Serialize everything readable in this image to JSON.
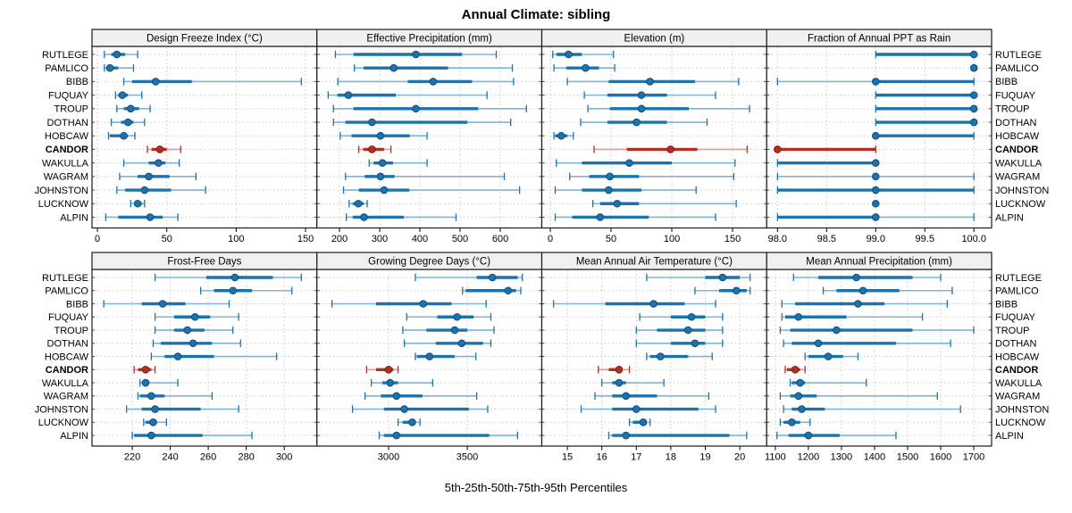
{
  "title": "Annual Climate: sibling",
  "axis_title": "5th-25th-50th-75th-95th Percentiles",
  "colors": {
    "series_blue": "#1c73ae",
    "series_blue_light": "#7db4d8",
    "series_blue_edge": "#0f4d79",
    "series_red": "#b52f25",
    "series_red_light": "#dc9d96",
    "series_red_edge": "#7c1c15",
    "grid": "#c9c9c9",
    "strip_bg": "#f0f0f0",
    "panel_border": "#1a1a1a",
    "text": "#000000"
  },
  "chart_data": {
    "type": "interval-dotplot",
    "subtype": "trellis 2x4, horizontal percentile whiskers with median dot",
    "percentiles": [
      5,
      25,
      50,
      75,
      95
    ],
    "legend_position": "none",
    "grid": "dotted",
    "highlight_site": "CANDOR",
    "sites": [
      "RUTLEGE",
      "PAMLICO",
      "BIBB",
      "FUQUAY",
      "TROUP",
      "DOTHAN",
      "HOBCAW",
      "CANDOR",
      "WAKULLA",
      "WAGRAM",
      "JOHNSTON",
      "LUCKNOW",
      "ALPIN"
    ],
    "panels": [
      {
        "title": "Design Freeze Index (°C)",
        "grid_pos": [
          0,
          0
        ],
        "xlim": [
          -3.9,
          158.2
        ],
        "ticks": [
          0,
          50,
          100,
          150
        ],
        "tick_labels": [
          "0",
          "50",
          "100",
          "150"
        ],
        "values": [
          [
            5,
            10,
            14,
            20,
            29
          ],
          [
            5,
            7,
            9,
            15,
            26
          ],
          [
            19,
            25,
            42,
            68,
            147
          ],
          [
            13,
            15,
            18,
            22,
            32
          ],
          [
            14,
            19,
            24,
            30,
            38
          ],
          [
            10,
            17,
            22,
            26,
            34
          ],
          [
            8,
            9,
            19,
            22,
            27
          ],
          [
            36,
            39,
            45,
            50,
            60
          ],
          [
            19,
            37,
            44,
            49,
            59
          ],
          [
            16,
            29,
            37,
            52,
            71
          ],
          [
            14,
            20,
            34,
            53,
            78
          ],
          [
            24,
            27,
            29,
            32,
            34
          ],
          [
            6,
            15,
            38,
            47,
            58
          ]
        ]
      },
      {
        "title": "Effective Precipitation (mm)",
        "grid_pos": [
          0,
          1
        ],
        "xlim": [
          143.9,
          703.3
        ],
        "ticks": [
          200,
          300,
          400,
          500,
          600
        ],
        "tick_labels": [
          "200",
          "300",
          "400",
          "500",
          "600"
        ],
        "values": [
          [
            190,
            235,
            390,
            505,
            590
          ],
          [
            237,
            260,
            335,
            470,
            630
          ],
          [
            196,
            370,
            433,
            530,
            633
          ],
          [
            172,
            195,
            222,
            340,
            567
          ],
          [
            185,
            235,
            390,
            545,
            665
          ],
          [
            185,
            215,
            281,
            518,
            626
          ],
          [
            202,
            230,
            302,
            375,
            418
          ],
          [
            248,
            259,
            281,
            311,
            328
          ],
          [
            274,
            285,
            307,
            333,
            418
          ],
          [
            215,
            263,
            302,
            337,
            610
          ],
          [
            210,
            248,
            311,
            374,
            648
          ],
          [
            224,
            233,
            247,
            260,
            269
          ],
          [
            217,
            233,
            261,
            360,
            490
          ]
        ]
      },
      {
        "title": "Elevation (m)",
        "grid_pos": [
          0,
          2
        ],
        "xlim": [
          -7.0,
          178.1
        ],
        "ticks": [
          0,
          50,
          100,
          150
        ],
        "tick_labels": [
          "0",
          "50",
          "100",
          "150"
        ],
        "values": [
          [
            2,
            5,
            15,
            26,
            52
          ],
          [
            3,
            13,
            29,
            40,
            53
          ],
          [
            14,
            48,
            82,
            119,
            155
          ],
          [
            28,
            47,
            75,
            96,
            136
          ],
          [
            31,
            49,
            75,
            114,
            164
          ],
          [
            25,
            47,
            71,
            96,
            129
          ],
          [
            3,
            4,
            9,
            14,
            19
          ],
          [
            36,
            63,
            99,
            121,
            162
          ],
          [
            5,
            26,
            65,
            100,
            152
          ],
          [
            16,
            32,
            49,
            73,
            151
          ],
          [
            4,
            26,
            48,
            75,
            120
          ],
          [
            35,
            41,
            55,
            73,
            153
          ],
          [
            4,
            18,
            41,
            81,
            136
          ]
        ]
      },
      {
        "title": "Fraction of Annual PPT as Rain",
        "grid_pos": [
          0,
          3
        ],
        "xlim": [
          97.89,
          100.18
        ],
        "ticks": [
          98.0,
          98.5,
          99.0,
          99.5,
          100.0
        ],
        "tick_labels": [
          "98.0",
          "98.5",
          "99.0",
          "99.5",
          "100.0"
        ],
        "values": [
          [
            99,
            99,
            100,
            100,
            100
          ],
          [
            100,
            100,
            100,
            100,
            100
          ],
          [
            98,
            99,
            99,
            100,
            100
          ],
          [
            99,
            99,
            100,
            100,
            100
          ],
          [
            99,
            99,
            100,
            100,
            100
          ],
          [
            99,
            99,
            100,
            100,
            100
          ],
          [
            99,
            99,
            99,
            100,
            100
          ],
          [
            98,
            98,
            98,
            99,
            99
          ],
          [
            98,
            98,
            99,
            99,
            99
          ],
          [
            98,
            99,
            99,
            99,
            100
          ],
          [
            98,
            98,
            99,
            100,
            100
          ],
          [
            99,
            99,
            99,
            99,
            99
          ],
          [
            98,
            98,
            99,
            99,
            100
          ]
        ]
      },
      {
        "title": "Frost-Free Days",
        "grid_pos": [
          1,
          0
        ],
        "xlim": [
          198.8,
          317.2
        ],
        "ticks": [
          220,
          240,
          260,
          280,
          300
        ],
        "tick_labels": [
          "220",
          "240",
          "260",
          "280",
          "300"
        ],
        "values": [
          [
            232,
            259,
            274,
            294,
            309
          ],
          [
            256,
            263,
            273,
            283,
            304
          ],
          [
            205,
            225,
            236,
            248,
            271
          ],
          [
            232,
            242,
            253,
            261,
            276
          ],
          [
            232,
            242,
            249,
            258,
            273
          ],
          [
            231,
            235,
            252,
            262,
            277
          ],
          [
            230,
            237,
            244,
            263,
            296
          ],
          [
            221,
            223,
            227,
            230,
            232
          ],
          [
            224,
            225,
            227,
            229,
            244
          ],
          [
            223,
            224,
            230,
            237,
            262
          ],
          [
            217,
            225,
            232,
            256,
            276
          ],
          [
            226,
            227,
            231,
            233,
            238
          ],
          [
            220,
            221,
            230,
            257,
            283
          ]
        ]
      },
      {
        "title": "Growing Degree Days (°C)",
        "grid_pos": [
          1,
          1
        ],
        "xlim": [
          2544,
          3974
        ],
        "ticks": [
          3000,
          3500
        ],
        "tick_labels": [
          "3000",
          "3500"
        ],
        "values": [
          [
            3170,
            3560,
            3660,
            3820,
            3850
          ],
          [
            3470,
            3490,
            3760,
            3810,
            3840
          ],
          [
            2640,
            2920,
            3220,
            3400,
            3620
          ],
          [
            3115,
            3310,
            3435,
            3540,
            3650
          ],
          [
            3090,
            3240,
            3420,
            3500,
            3670
          ],
          [
            3100,
            3300,
            3465,
            3600,
            3650
          ],
          [
            3170,
            3180,
            3260,
            3420,
            3555
          ],
          [
            2860,
            2920,
            3000,
            3030,
            3060
          ],
          [
            2890,
            2960,
            3010,
            3060,
            3280
          ],
          [
            2850,
            2950,
            3050,
            3215,
            3560
          ],
          [
            2770,
            2970,
            3100,
            3510,
            3630
          ],
          [
            3060,
            3090,
            3150,
            3170,
            3200
          ],
          [
            2940,
            2970,
            3050,
            3640,
            3820
          ]
        ]
      },
      {
        "title": "Mean Annual Air Temperature (°C)",
        "grid_pos": [
          1,
          2
        ],
        "xlim": [
          14.26,
          20.78
        ],
        "ticks": [
          15,
          16,
          17,
          18,
          19,
          20
        ],
        "tick_labels": [
          "15",
          "16",
          "17",
          "18",
          "19",
          "20"
        ],
        "values": [
          [
            17.3,
            19.0,
            19.5,
            20.0,
            20.3
          ],
          [
            18.7,
            19.4,
            19.9,
            20.2,
            20.3
          ],
          [
            14.6,
            16.1,
            17.5,
            18.4,
            19.3
          ],
          [
            17.1,
            18.0,
            18.6,
            19.0,
            19.5
          ],
          [
            17.0,
            17.6,
            18.5,
            19.0,
            19.5
          ],
          [
            17.0,
            18.0,
            18.7,
            19.0,
            19.5
          ],
          [
            17.3,
            17.4,
            17.7,
            18.5,
            19.2
          ],
          [
            15.9,
            16.2,
            16.5,
            16.6,
            16.8
          ],
          [
            16.0,
            16.3,
            16.5,
            16.7,
            17.8
          ],
          [
            15.8,
            16.3,
            16.7,
            17.6,
            19.1
          ],
          [
            15.4,
            16.3,
            17.0,
            18.8,
            19.3
          ],
          [
            16.8,
            16.9,
            17.2,
            17.3,
            17.4
          ],
          [
            16.2,
            16.3,
            16.7,
            19.7,
            20.2
          ]
        ]
      },
      {
        "title": "Mean Annual Precipitation (mm)",
        "grid_pos": [
          1,
          3
        ],
        "xlim": [
          1074,
          1754
        ],
        "ticks": [
          1100,
          1200,
          1300,
          1400,
          1500,
          1600,
          1700
        ],
        "tick_labels": [
          "1100",
          "1200",
          "1300",
          "1400",
          "1500",
          "1600",
          "1700"
        ],
        "values": [
          [
            1155,
            1230,
            1345,
            1515,
            1600
          ],
          [
            1245,
            1285,
            1365,
            1475,
            1635
          ],
          [
            1120,
            1160,
            1350,
            1430,
            1620
          ],
          [
            1120,
            1130,
            1170,
            1315,
            1545
          ],
          [
            1115,
            1145,
            1285,
            1515,
            1700
          ],
          [
            1125,
            1150,
            1230,
            1465,
            1630
          ],
          [
            1190,
            1200,
            1260,
            1305,
            1350
          ],
          [
            1130,
            1135,
            1160,
            1175,
            1190
          ],
          [
            1145,
            1150,
            1175,
            1190,
            1375
          ],
          [
            1115,
            1145,
            1170,
            1225,
            1590
          ],
          [
            1125,
            1150,
            1180,
            1250,
            1660
          ],
          [
            1115,
            1125,
            1150,
            1175,
            1205
          ],
          [
            1105,
            1140,
            1200,
            1295,
            1465
          ]
        ]
      }
    ]
  }
}
